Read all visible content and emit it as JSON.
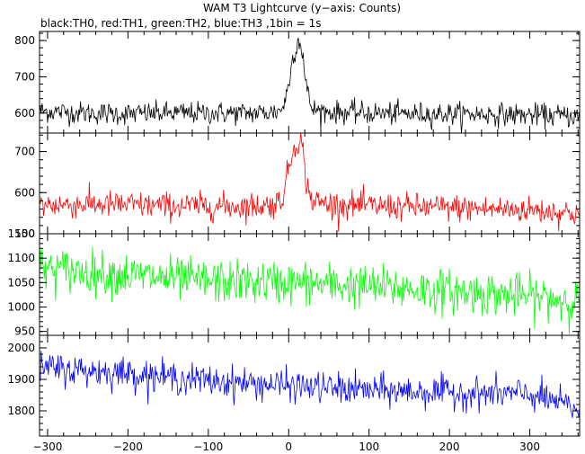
{
  "page": {
    "title": "WAM T3 Lightcurve (y−axis: Counts)",
    "subtitle": "black:TH0, red:TH1, green:TH2, blue:TH3 ,1bin = 1s"
  },
  "chart_data": {
    "type": "line",
    "title": "WAM T3 Lightcurve (y−axis: Counts)",
    "subtitle": "black:TH0, red:TH1, green:TH2, blue:TH3 ,1bin = 1s",
    "xlabel": "",
    "ylabel": "Counts",
    "xlim": [
      -310,
      362
    ],
    "x_ticks": [
      -300,
      -200,
      -100,
      0,
      100,
      200,
      300
    ],
    "x_tick_labels": [
      "−300",
      "−200",
      "−100",
      "0",
      "100",
      "200",
      "300"
    ],
    "bin_seconds": 1,
    "grid": false,
    "legend": "none",
    "series": [
      {
        "name": "TH0",
        "color": "#000000",
        "ylim": [
          545,
          825
        ],
        "y_ticks": [
          600,
          700,
          800
        ],
        "x": [
          -300,
          -250,
          -200,
          -150,
          -100,
          -50,
          -20,
          -10,
          -5,
          0,
          5,
          10,
          12,
          15,
          18,
          20,
          25,
          30,
          50,
          100,
          150,
          200,
          250,
          300,
          360
        ],
        "values": [
          605,
          600,
          598,
          600,
          600,
          600,
          602,
          608,
          630,
          680,
          750,
          790,
          800,
          790,
          760,
          700,
          640,
          610,
          603,
          600,
          598,
          598,
          597,
          595,
          592
        ],
        "noise_amplitude": 28
      },
      {
        "name": "TH1",
        "color": "#ff0000",
        "ylim": [
          500,
          745
        ],
        "y_ticks": [
          500,
          600,
          700
        ],
        "x": [
          -300,
          -250,
          -200,
          -150,
          -100,
          -50,
          -20,
          -10,
          -5,
          0,
          5,
          10,
          12,
          15,
          18,
          20,
          25,
          30,
          50,
          100,
          150,
          200,
          250,
          300,
          360
        ],
        "values": [
          570,
          572,
          570,
          568,
          567,
          567,
          570,
          580,
          610,
          660,
          700,
          725,
          728,
          725,
          700,
          650,
          600,
          580,
          572,
          568,
          565,
          563,
          560,
          558,
          550
        ],
        "noise_amplitude": 30
      },
      {
        "name": "TH2",
        "color": "#00ff00",
        "ylim": [
          942,
          1150
        ],
        "y_ticks": [
          950,
          1000,
          1050,
          1100,
          1150
        ],
        "x": [
          -300,
          -200,
          -100,
          0,
          100,
          200,
          300,
          360
        ],
        "values": [
          1078,
          1065,
          1052,
          1050,
          1042,
          1032,
          1022,
          1012
        ],
        "noise_amplitude": 40
      },
      {
        "name": "TH3",
        "color": "#0000ff",
        "ylim": [
          1720,
          2040
        ],
        "y_ticks": [
          1800,
          1900,
          2000
        ],
        "x": [
          -300,
          -200,
          -100,
          0,
          100,
          200,
          300,
          330,
          360
        ],
        "values": [
          1935,
          1920,
          1895,
          1880,
          1865,
          1858,
          1852,
          1830,
          1805
        ],
        "noise_amplitude": 45
      }
    ]
  }
}
